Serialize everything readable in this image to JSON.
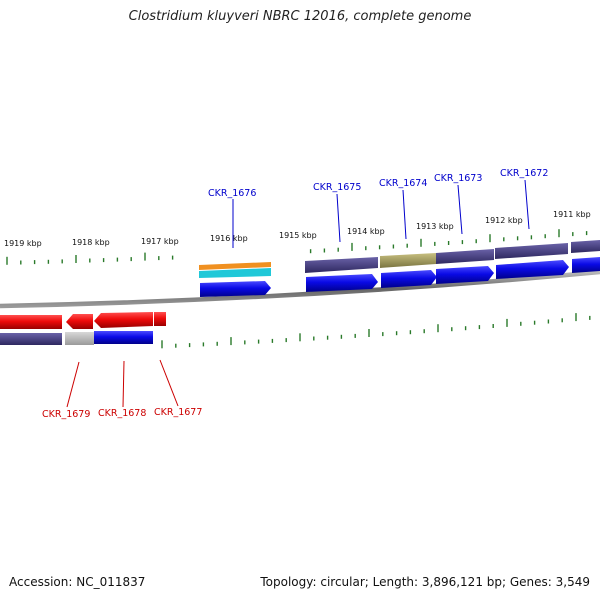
{
  "title": "Clostridium kluyveri NBRC 12016, complete genome",
  "footer": {
    "accession": "Accession: NC_011837",
    "summary": "Topology: circular; Length: 3,896,121 bp; Genes: 3,549"
  },
  "scale": {
    "ticks": [
      {
        "label": "1919 kbp"
      },
      {
        "label": "1918 kbp"
      },
      {
        "label": "1917 kbp"
      },
      {
        "label": "1916 kbp"
      },
      {
        "label": "1915 kbp"
      },
      {
        "label": "1914 kbp"
      },
      {
        "label": "1913 kbp"
      },
      {
        "label": "1912 kbp"
      },
      {
        "label": "1911 kbp"
      }
    ]
  },
  "genes": {
    "forward": [
      {
        "label": "CKR_1676",
        "color": "#0000cc"
      },
      {
        "label": "CKR_1675",
        "color": "#0000cc"
      },
      {
        "label": "CKR_1674",
        "color": "#0000cc"
      },
      {
        "label": "CKR_1673",
        "color": "#0000cc"
      },
      {
        "label": "CKR_1672",
        "color": "#0000cc"
      }
    ],
    "reverse": [
      {
        "label": "CKR_1679",
        "color": "#cc0000"
      },
      {
        "label": "CKR_1678",
        "color": "#cc0000"
      },
      {
        "label": "CKR_1677",
        "color": "#cc0000"
      }
    ]
  },
  "colors": {
    "forward_gene": "#0a0ae6",
    "reverse_gene": "#ee0a0a",
    "cog_purple": "#4a4080",
    "cog_olive": "#a8a060",
    "cog_gray": "#c0c0c0",
    "rna_orange": "#f09020",
    "rna_cyan": "#20c8d8",
    "backbone": "#777777",
    "tick": "#2a7a2a"
  }
}
